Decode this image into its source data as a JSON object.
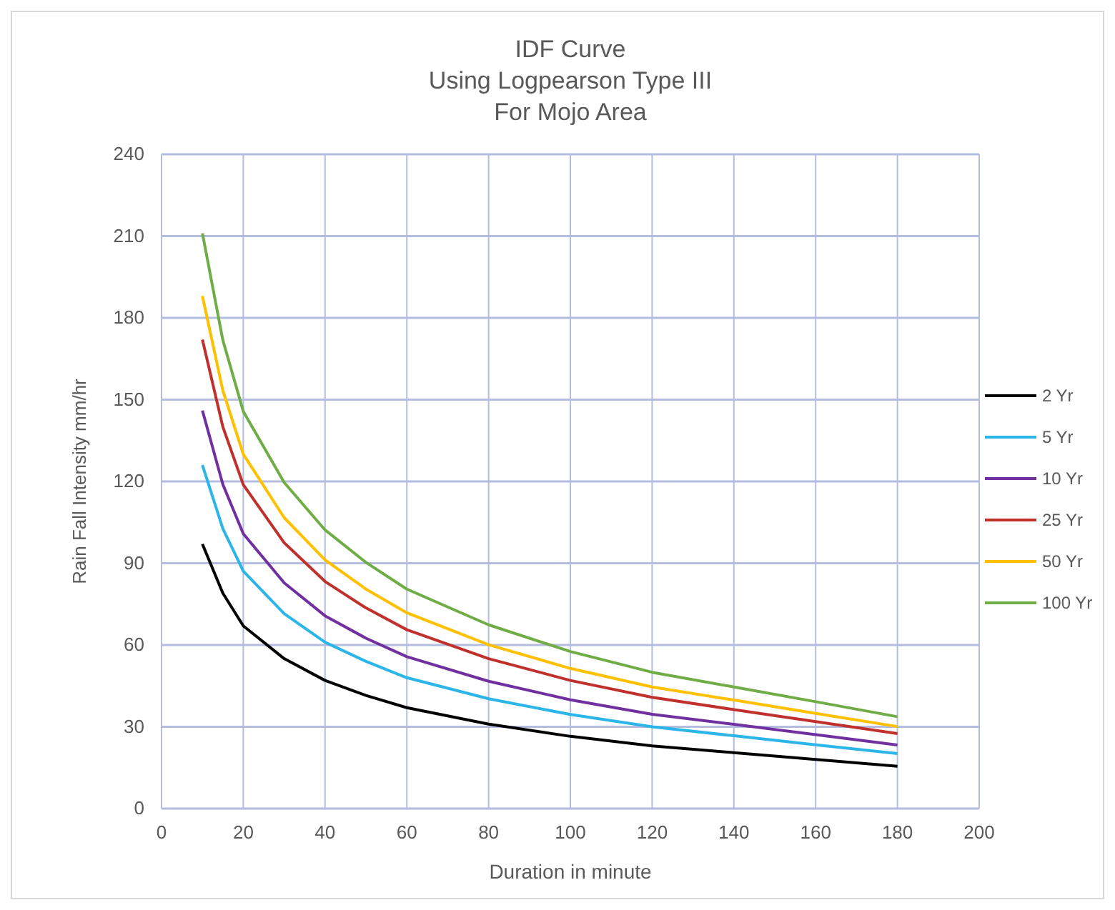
{
  "chart_data": {
    "type": "line",
    "title": "IDF Curve\nUsing  Logpearson Type III\nFor Mojo Area",
    "xlabel": "Duration in minute",
    "ylabel": "Rain Fall Intensity  mm/hr",
    "x": [
      10,
      15,
      20,
      30,
      40,
      50,
      60,
      80,
      100,
      120,
      140,
      160,
      180
    ],
    "series": [
      {
        "name": "2 Yr",
        "color": "#000000",
        "values": [
          97,
          79,
          67,
          55,
          47,
          41.5,
          37,
          31,
          26.5,
          23,
          20.5,
          18,
          15.5
        ]
      },
      {
        "name": "5 Yr",
        "color": "#2bb5e8",
        "values": [
          126,
          102.7,
          87.1,
          71.5,
          61,
          54,
          48,
          40.3,
          34.5,
          30,
          26.7,
          23.4,
          20.2
        ]
      },
      {
        "name": "10 Yr",
        "color": "#7030a0",
        "values": [
          146,
          118.9,
          100.8,
          82.8,
          70.7,
          62.5,
          55.7,
          46.7,
          39.9,
          34.6,
          30.9,
          27.1,
          23.3
        ]
      },
      {
        "name": "25 Yr",
        "color": "#c0302c",
        "values": [
          172,
          140,
          118.8,
          97.5,
          83.3,
          73.6,
          65.6,
          55,
          47,
          40.8,
          36.3,
          31.9,
          27.5
        ]
      },
      {
        "name": "50 Yr",
        "color": "#ffc000",
        "values": [
          188,
          153.3,
          130,
          106.7,
          91.2,
          80.5,
          71.8,
          60.1,
          51.4,
          44.6,
          39.8,
          34.9,
          30.1
        ]
      },
      {
        "name": "100 Yr",
        "color": "#70ad47",
        "values": [
          211,
          171.8,
          145.7,
          119.6,
          102.2,
          90.3,
          80.5,
          67.4,
          57.6,
          50,
          44.6,
          39.2,
          33.7
        ]
      }
    ],
    "xlim": [
      0,
      200
    ],
    "xticks": [
      0,
      20,
      40,
      60,
      80,
      100,
      120,
      140,
      160,
      180,
      200
    ],
    "ylim": [
      0,
      240
    ],
    "yticks": [
      0,
      30,
      60,
      90,
      120,
      150,
      180,
      210,
      240
    ],
    "grid": true,
    "legend": "right",
    "marker": "none",
    "line_style": "solid"
  }
}
